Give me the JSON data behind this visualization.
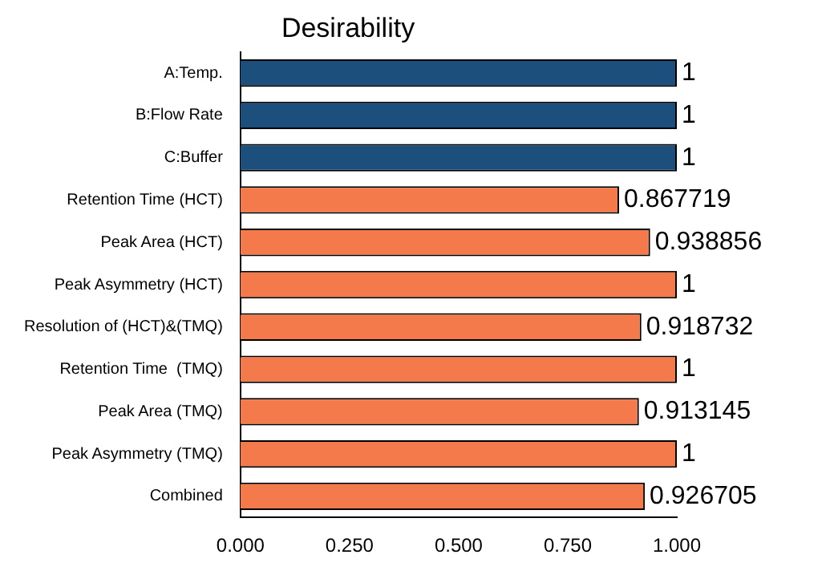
{
  "chart_data": {
    "type": "bar",
    "title": "Desirability",
    "orientation": "horizontal",
    "categories": [
      "A:Temp.",
      "B:Flow Rate",
      "C:Buffer",
      "Retention Time (HCT)",
      "Peak Area (HCT)",
      "Peak Asymmetry (HCT)",
      "Resolution of (HCT)&(TMQ)",
      "Retention Time  (TMQ)",
      "Peak Area (TMQ)",
      "Peak Asymmetry (TMQ)",
      "Combined"
    ],
    "values": [
      1,
      1,
      1,
      0.867719,
      0.938856,
      1,
      0.918732,
      1,
      0.913145,
      1,
      0.926705
    ],
    "colors": [
      "#1c4f7c",
      "#1c4f7c",
      "#1c4f7c",
      "#f47a4c",
      "#f47a4c",
      "#f47a4c",
      "#f47a4c",
      "#f47a4c",
      "#f47a4c",
      "#f47a4c",
      "#f47a4c"
    ],
    "xlim": [
      0,
      1
    ],
    "xticks": [
      {
        "value": 0,
        "label": "0.000"
      },
      {
        "value": 0.25,
        "label": "0.250"
      },
      {
        "value": 0.5,
        "label": "0.500"
      },
      {
        "value": 0.75,
        "label": "0.750"
      },
      {
        "value": 1,
        "label": "1.000"
      }
    ],
    "data_labels": true,
    "grid": false,
    "legend": false
  }
}
